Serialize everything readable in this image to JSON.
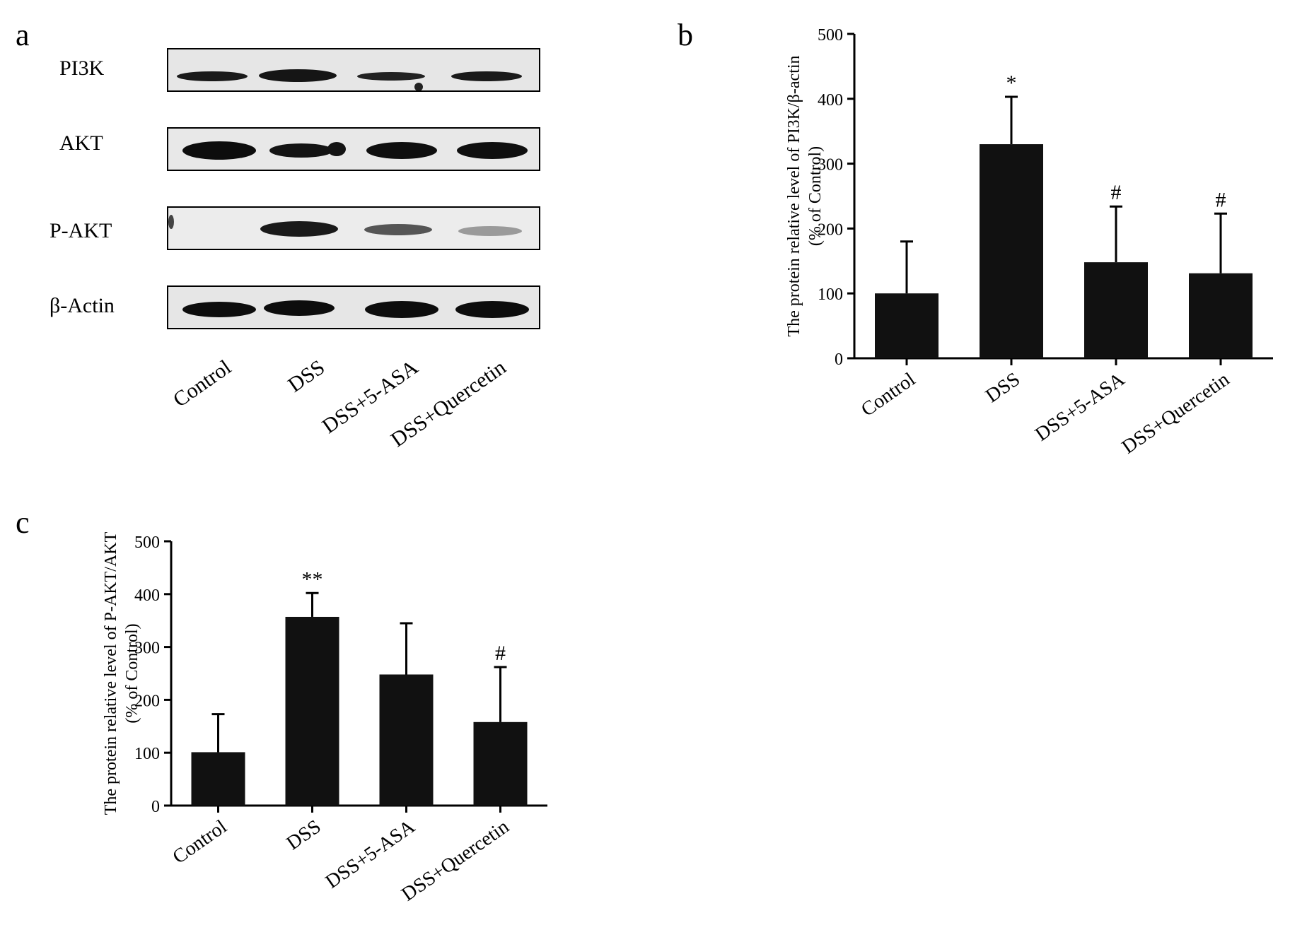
{
  "panels": {
    "a": {
      "letter": "a",
      "rows": [
        "PI3K",
        "AKT",
        "P-AKT",
        "β-Actin"
      ],
      "lanes": [
        "Control",
        "DSS",
        "DSS+5-ASA",
        "DSS+Quercetin"
      ]
    },
    "b": {
      "letter": "b"
    },
    "c": {
      "letter": "c"
    }
  },
  "colors": {
    "bar": "#111111",
    "axis": "#000000",
    "background": "#ffffff"
  },
  "chart_data": [
    {
      "id": "b",
      "type": "bar",
      "categories": [
        "Control",
        "DSS",
        "DSS+5-ASA",
        "DSS+Quercetin"
      ],
      "values": [
        100,
        330,
        148,
        131
      ],
      "errors": [
        80,
        73,
        86,
        92
      ],
      "annotations": [
        "",
        "*",
        "#",
        "#"
      ],
      "ylabel": [
        "The protein relative level of PI3K/β-actin",
        "(% of Control)"
      ],
      "ylim": [
        0,
        500
      ],
      "yticks": [
        0,
        100,
        200,
        300,
        400,
        500
      ],
      "grid": false,
      "legend": "none"
    },
    {
      "id": "c",
      "type": "bar",
      "categories": [
        "Control",
        "DSS",
        "DSS+5-ASA",
        "DSS+Quercetin"
      ],
      "values": [
        101,
        357,
        248,
        158
      ],
      "errors": [
        72,
        45,
        97,
        104
      ],
      "annotations": [
        "",
        "**",
        "",
        "#"
      ],
      "ylabel": [
        "The protein relative level of P-AKT/AKT",
        "(% of Control)"
      ],
      "ylim": [
        0,
        500
      ],
      "yticks": [
        0,
        100,
        200,
        300,
        400,
        500
      ],
      "grid": false,
      "legend": "none"
    }
  ]
}
